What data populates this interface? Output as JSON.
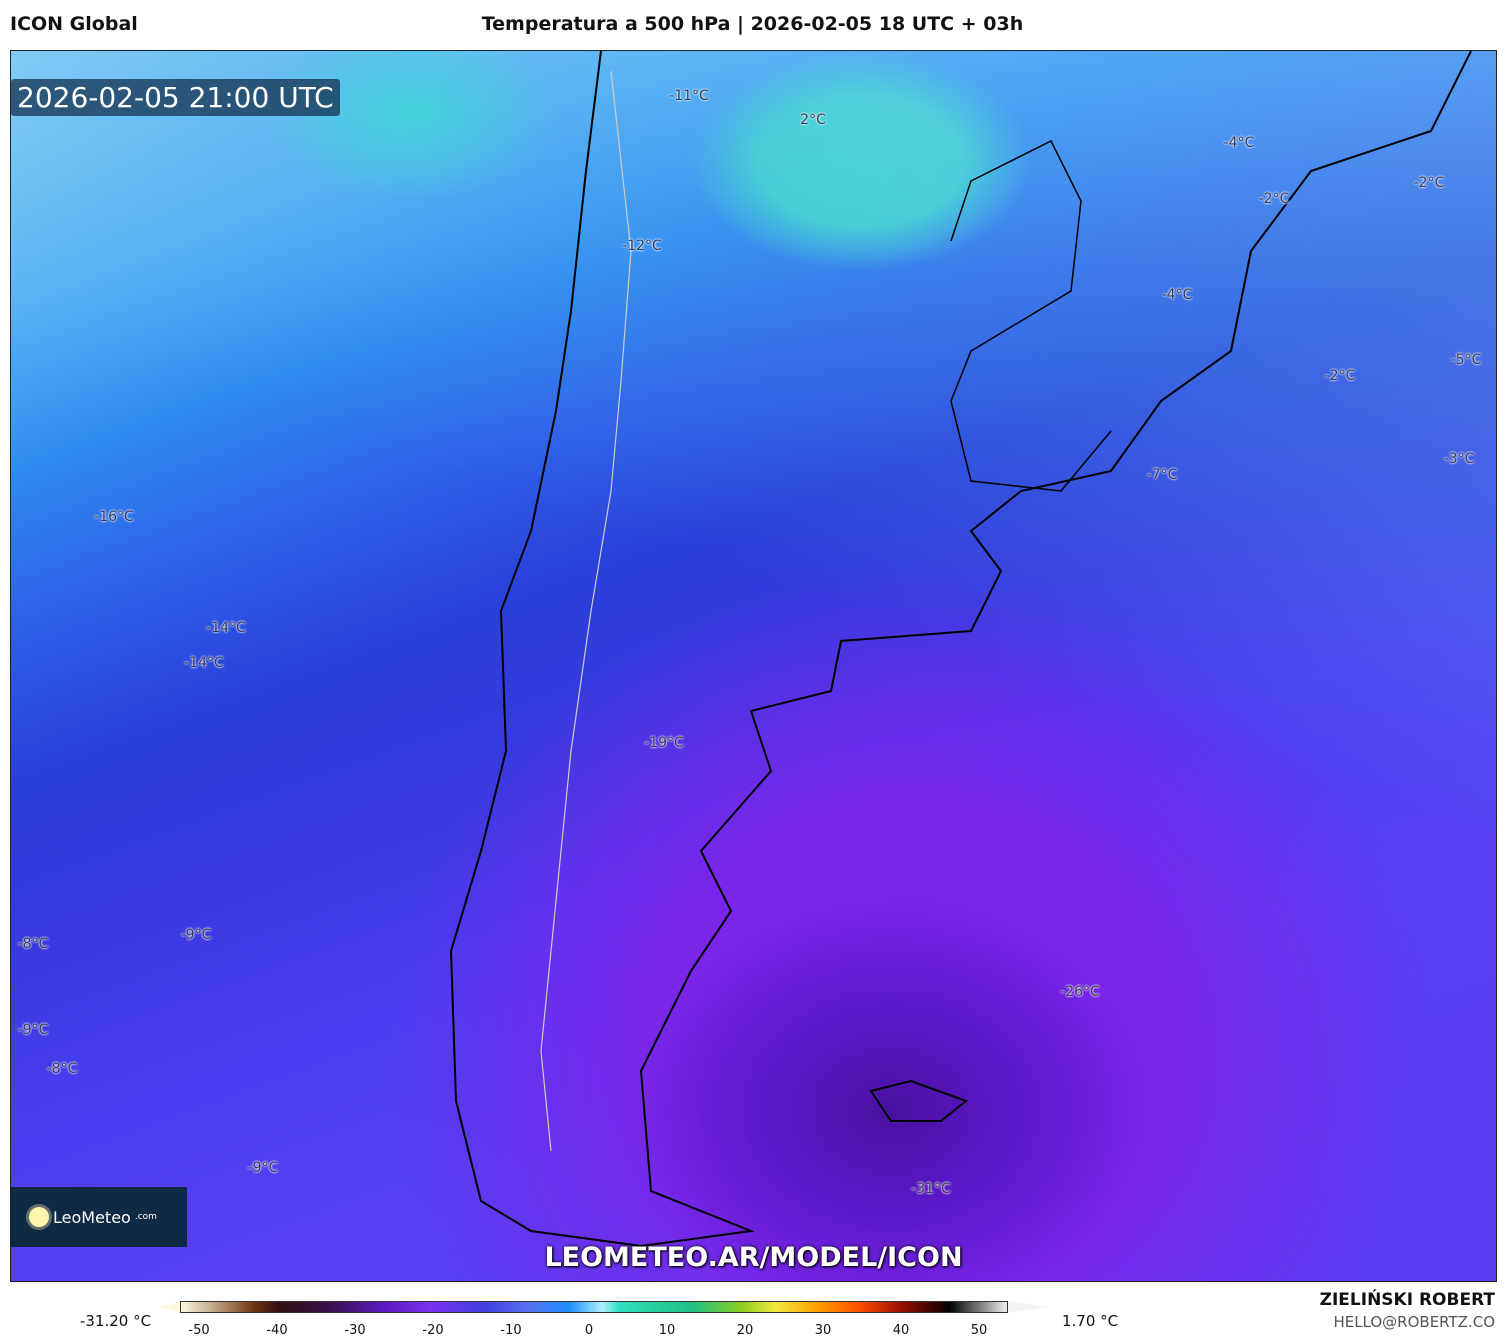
{
  "header": {
    "model": "ICON Global",
    "title": "Temperatura a 500 hPa | 2026-02-05 18 UTC + 03h"
  },
  "map": {
    "valid_time": "2026-02-05 21:00 UTC",
    "watermark_url": "LEOMETEO.AR/MODEL/ICON",
    "logo": {
      "name": "LeoMeteo",
      "suffix": ".com",
      "icon": "sun-icon"
    },
    "labels": [
      "-11°C",
      "2°C",
      "-4°C",
      "-2°C",
      "-2°C",
      "-12°C",
      "-4°C",
      "-5°C",
      "-2°C",
      "-3°C",
      "-7°C",
      "-16°C",
      "-14°C",
      "-14°C",
      "-19°C",
      "-8°C",
      "-9°C",
      "-26°C",
      "-9°C",
      "-8°C",
      "-9°C",
      "-31°C"
    ]
  },
  "colorbar": {
    "min_label": "-31.20 °C",
    "max_label": "1.70 °C",
    "ticks": [
      "-50",
      "-40",
      "-30",
      "-20",
      "-10",
      "0",
      "10",
      "20",
      "30",
      "40",
      "50"
    ]
  },
  "credits": {
    "author": "ZIELIŃSKI ROBERT",
    "email": "HELLO@ROBERTZ.CO"
  }
}
